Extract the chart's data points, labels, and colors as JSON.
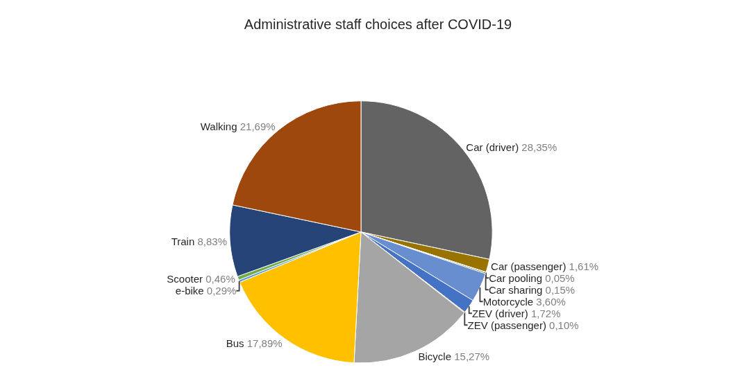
{
  "chart_data": {
    "type": "pie",
    "title": "Administrative staff choices after COVID-19",
    "categories": [
      "Car (driver)",
      "Car (passenger)",
      "Car pooling",
      "Car sharing",
      "Motorcycle",
      "ZEV (driver)",
      "ZEV (passenger)",
      "Bicycle",
      "Bus",
      "e-bike",
      "Scooter",
      "Train",
      "Walking"
    ],
    "values": [
      28.35,
      1.61,
      0.05,
      0.15,
      3.6,
      1.72,
      0.1,
      15.27,
      17.89,
      0.29,
      0.46,
      8.83,
      21.69
    ],
    "value_labels": [
      "28,35%",
      "1,61%",
      "0,05%",
      "0,15%",
      "3,60%",
      "1,72%",
      "0,10%",
      "15,27%",
      "17,89%",
      "0,29%",
      "0,46%",
      "8,83%",
      "21,69%"
    ],
    "colors": [
      "#636363",
      "#997300",
      "#255e91",
      "#43682b",
      "#698ed0",
      "#4472c4",
      "#ed7d31",
      "#a5a5a5",
      "#ffc000",
      "#5b9bd5",
      "#70ad47",
      "#264478",
      "#9e480e"
    ],
    "legend": false
  }
}
